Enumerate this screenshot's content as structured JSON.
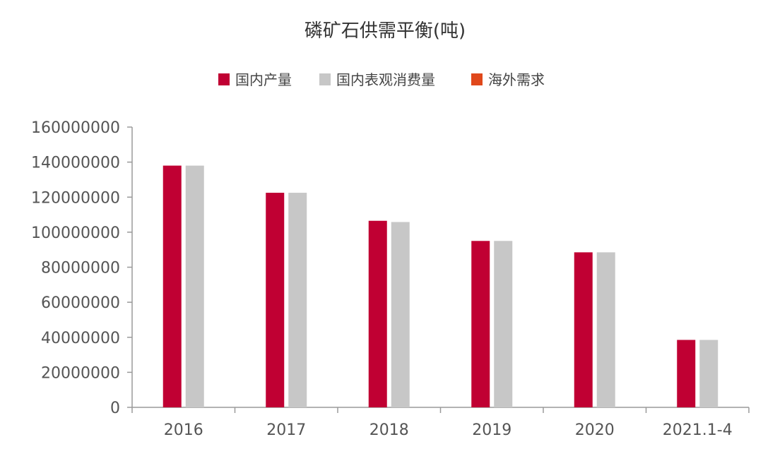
{
  "chart_data": {
    "type": "bar",
    "title": "磷矿石供需平衡(吨)",
    "categories": [
      "2016",
      "2017",
      "2018",
      "2019",
      "2020",
      "2021.1-4"
    ],
    "series": [
      {
        "name": "国内产量",
        "color": "#c00033",
        "values": [
          138000000,
          122500000,
          106500000,
          95000000,
          88500000,
          38500000
        ]
      },
      {
        "name": "国内表观消费量",
        "color": "#c7c7c7",
        "values": [
          138000000,
          122500000,
          105800000,
          95000000,
          88500000,
          38500000
        ]
      },
      {
        "name": "海外需求",
        "color": "#e0481b",
        "values": [
          0,
          0,
          0,
          0,
          0,
          0
        ]
      }
    ],
    "ylim": [
      0,
      160000000
    ],
    "yticks": [
      0,
      20000000,
      40000000,
      60000000,
      80000000,
      100000000,
      120000000,
      140000000,
      160000000
    ],
    "legend_position": "top",
    "grid": false
  }
}
